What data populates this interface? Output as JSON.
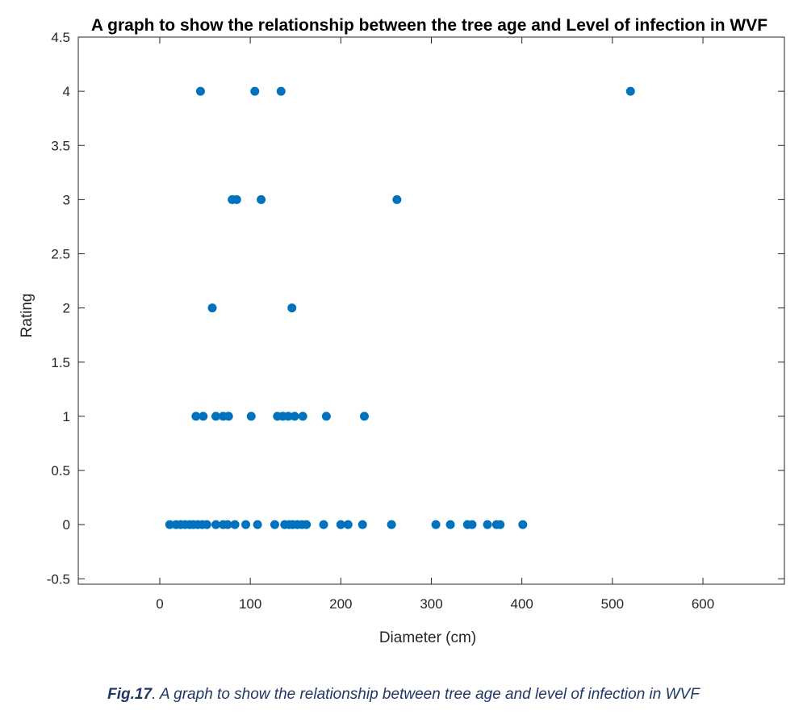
{
  "chart_data": {
    "type": "scatter",
    "title": "A graph to show the relationship between the tree age and Level of infection in WVF",
    "xlabel": "Diameter (cm)",
    "ylabel": "Rating",
    "xlim": [
      -90,
      690
    ],
    "ylim": [
      -0.55,
      4.5
    ],
    "xticks": [
      0,
      100,
      200,
      300,
      400,
      500,
      600
    ],
    "yticks": [
      -0.5,
      0,
      0.5,
      1,
      1.5,
      2,
      2.5,
      3,
      3.5,
      4,
      4.5
    ],
    "xtick_labels": [
      "0",
      "100",
      "200",
      "300",
      "400",
      "500",
      "600"
    ],
    "ytick_labels": [
      "-0.5",
      "0",
      "0.5",
      "1",
      "1.5",
      "2",
      "2.5",
      "3",
      "3.5",
      "4",
      "4.5"
    ],
    "grid": false,
    "marker_color": "#0072BD",
    "series": [
      {
        "points": [
          [
            45,
            4
          ],
          [
            105,
            4
          ],
          [
            134,
            4
          ],
          [
            520,
            4
          ],
          [
            80,
            3
          ],
          [
            85,
            3
          ],
          [
            112,
            3
          ],
          [
            262,
            3
          ],
          [
            58,
            2
          ],
          [
            146,
            2
          ],
          [
            40,
            1
          ],
          [
            48,
            1
          ],
          [
            62,
            1
          ],
          [
            70,
            1
          ],
          [
            76,
            1
          ],
          [
            101,
            1
          ],
          [
            130,
            1
          ],
          [
            136,
            1
          ],
          [
            142,
            1
          ],
          [
            149,
            1
          ],
          [
            158,
            1
          ],
          [
            184,
            1
          ],
          [
            226,
            1
          ],
          [
            11,
            0
          ],
          [
            18,
            0
          ],
          [
            23,
            0
          ],
          [
            28,
            0
          ],
          [
            33,
            0
          ],
          [
            37,
            0
          ],
          [
            42,
            0
          ],
          [
            47,
            0
          ],
          [
            52,
            0
          ],
          [
            62,
            0
          ],
          [
            70,
            0
          ],
          [
            75,
            0
          ],
          [
            83,
            0
          ],
          [
            95,
            0
          ],
          [
            108,
            0
          ],
          [
            127,
            0
          ],
          [
            138,
            0
          ],
          [
            143,
            0
          ],
          [
            147,
            0
          ],
          [
            152,
            0
          ],
          [
            157,
            0
          ],
          [
            162,
            0
          ],
          [
            181,
            0
          ],
          [
            200,
            0
          ],
          [
            208,
            0
          ],
          [
            224,
            0
          ],
          [
            256,
            0
          ],
          [
            305,
            0
          ],
          [
            321,
            0
          ],
          [
            340,
            0
          ],
          [
            345,
            0
          ],
          [
            362,
            0
          ],
          [
            372,
            0
          ],
          [
            376,
            0
          ],
          [
            401,
            0
          ]
        ]
      }
    ]
  },
  "caption": {
    "label": "Fig.17",
    "text": ". A graph to show the relationship between tree age and level of infection in WVF"
  }
}
